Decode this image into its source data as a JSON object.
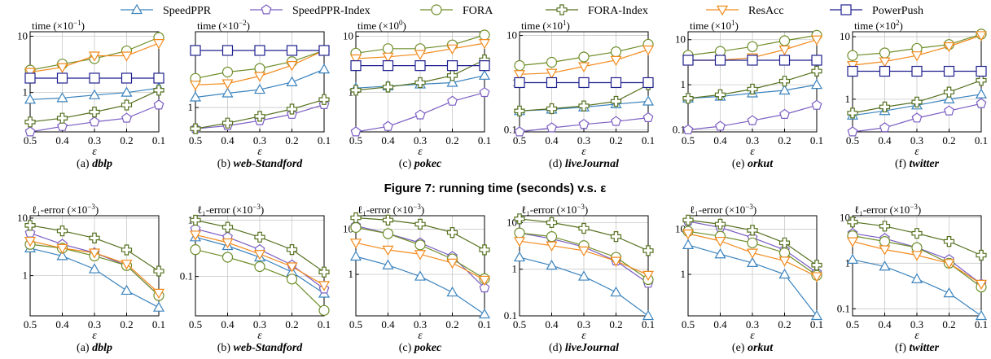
{
  "legend": [
    {
      "name": "SpeedPPR",
      "color": "#3b83bd",
      "marker": "triangle-up"
    },
    {
      "name": "SpeedPPR-Index",
      "color": "#7b5dc2",
      "marker": "pentagon"
    },
    {
      "name": "FORA",
      "color": "#6f8e2a",
      "marker": "circle"
    },
    {
      "name": "FORA-Index",
      "color": "#55701f",
      "marker": "plus"
    },
    {
      "name": "ResAcc",
      "color": "#f28a1c",
      "marker": "triangle-down"
    },
    {
      "name": "PowerPush",
      "color": "#1f1f8f",
      "marker": "square"
    }
  ],
  "figure_caption": "Figure 7: running time (seconds) v.s. ε",
  "x_label": "ε",
  "x_ticks": [
    "0.5",
    "0.4",
    "0.3",
    "0.2",
    "0.1"
  ],
  "chart_data": [
    {
      "type": "line",
      "row": 1,
      "caption_prefix": "(a)",
      "caption_name": "dblp",
      "title": "time (×10",
      "title_exp": "−1",
      "ytype": "log",
      "ylim": [
        0.2,
        12
      ],
      "yticks": [
        {
          "v": 1,
          "l": "1"
        },
        {
          "v": 10,
          "l": "10"
        }
      ],
      "x": [
        0.5,
        0.4,
        0.3,
        0.2,
        0.1
      ],
      "series": [
        {
          "name": "SpeedPPR",
          "values": [
            0.75,
            0.8,
            0.9,
            1.0,
            1.2
          ]
        },
        {
          "name": "SpeedPPR-Index",
          "values": [
            0.2,
            0.25,
            0.3,
            0.35,
            0.6
          ]
        },
        {
          "name": "FORA",
          "values": [
            2.5,
            3.2,
            4.0,
            5.5,
            9.5
          ]
        },
        {
          "name": "FORA-Index",
          "values": [
            0.3,
            0.35,
            0.45,
            0.6,
            1.1
          ]
        },
        {
          "name": "ResAcc",
          "values": [
            2.3,
            2.8,
            4.5,
            4.5,
            7.5
          ]
        },
        {
          "name": "PowerPush",
          "values": [
            1.8,
            1.8,
            1.8,
            1.8,
            1.8
          ]
        }
      ]
    },
    {
      "type": "line",
      "row": 1,
      "caption_prefix": "(b)",
      "caption_name": "web-Standford",
      "title": "time (×10",
      "title_exp": "−2",
      "ytype": "log",
      "ylim": [
        0.45,
        12
      ],
      "yticks": [
        {
          "v": 1,
          "l": "1"
        }
      ],
      "x": [
        0.5,
        0.4,
        0.3,
        0.2,
        0.1
      ],
      "series": [
        {
          "name": "SpeedPPR",
          "values": [
            1.4,
            1.6,
            1.8,
            2.3,
            3.5
          ]
        },
        {
          "name": "SpeedPPR-Index",
          "values": [
            0.5,
            0.55,
            0.65,
            0.8,
            1.1
          ]
        },
        {
          "name": "FORA",
          "values": [
            2.6,
            3.2,
            3.6,
            4.5,
            6.5
          ]
        },
        {
          "name": "FORA-Index",
          "values": [
            0.5,
            0.6,
            0.75,
            0.95,
            1.3
          ]
        },
        {
          "name": "ResAcc",
          "values": [
            2.1,
            2.2,
            2.8,
            4.0,
            6.5
          ]
        },
        {
          "name": "PowerPush",
          "values": [
            6.5,
            6.5,
            6.5,
            6.5,
            6.5
          ]
        }
      ]
    },
    {
      "type": "line",
      "row": 1,
      "caption_prefix": "(c)",
      "caption_name": "pokec",
      "title": "time (×10",
      "title_exp": "0",
      "ytype": "log",
      "ylim": [
        0.2,
        12
      ],
      "yticks": [
        {
          "v": 1,
          "l": "1"
        },
        {
          "v": 10,
          "l": "10"
        }
      ],
      "x": [
        0.5,
        0.4,
        0.3,
        0.2,
        0.1
      ],
      "series": [
        {
          "name": "SpeedPPR",
          "values": [
            1.2,
            1.3,
            1.4,
            1.5,
            2.0
          ]
        },
        {
          "name": "SpeedPPR-Index",
          "values": [
            0.2,
            0.25,
            0.4,
            0.7,
            1.0
          ]
        },
        {
          "name": "FORA",
          "values": [
            5.0,
            6.0,
            6.0,
            7.0,
            10.5
          ]
        },
        {
          "name": "FORA-Index",
          "values": [
            1.1,
            1.25,
            1.5,
            2.0,
            3.8
          ]
        },
        {
          "name": "ResAcc",
          "values": [
            4.0,
            4.3,
            4.8,
            6.0,
            7.5
          ]
        },
        {
          "name": "PowerPush",
          "values": [
            3.0,
            3.0,
            3.0,
            3.0,
            3.0
          ]
        }
      ]
    },
    {
      "type": "line",
      "row": 1,
      "caption_prefix": "(d)",
      "caption_name": "liveJournal",
      "title": "time (×10",
      "title_exp": "1",
      "ytype": "log",
      "ylim": [
        0.09,
        12
      ],
      "yticks": [
        {
          "v": 0.1,
          "l": "0.1"
        },
        {
          "v": 1,
          "l": "1"
        },
        {
          "v": 10,
          "l": "10"
        }
      ],
      "x": [
        0.5,
        0.4,
        0.3,
        0.2,
        0.1
      ],
      "series": [
        {
          "name": "SpeedPPR",
          "values": [
            0.25,
            0.27,
            0.3,
            0.35,
            0.4
          ]
        },
        {
          "name": "SpeedPPR-Index",
          "values": [
            0.09,
            0.11,
            0.13,
            0.15,
            0.18
          ]
        },
        {
          "name": "FORA",
          "values": [
            2.3,
            2.7,
            3.5,
            4.5,
            6.5
          ]
        },
        {
          "name": "FORA-Index",
          "values": [
            0.25,
            0.28,
            0.32,
            0.4,
            0.9
          ]
        },
        {
          "name": "ResAcc",
          "values": [
            1.5,
            1.6,
            2.2,
            3.0,
            5.0
          ]
        },
        {
          "name": "PowerPush",
          "values": [
            1.0,
            1.0,
            1.0,
            1.0,
            1.0
          ]
        }
      ]
    },
    {
      "type": "line",
      "row": 1,
      "caption_prefix": "(e)",
      "caption_name": "orkut",
      "title": "time (×10",
      "title_exp": "1",
      "ytype": "log",
      "ylim": [
        0.09,
        15
      ],
      "yticks": [
        {
          "v": 0.1,
          "l": "0.1"
        },
        {
          "v": 1,
          "l": "1"
        },
        {
          "v": 10,
          "l": "10"
        }
      ],
      "x": [
        0.5,
        0.4,
        0.3,
        0.2,
        0.1
      ],
      "series": [
        {
          "name": "SpeedPPR",
          "values": [
            0.5,
            0.55,
            0.65,
            0.75,
            1.0
          ]
        },
        {
          "name": "SpeedPPR-Index",
          "values": [
            0.1,
            0.12,
            0.16,
            0.22,
            0.35
          ]
        },
        {
          "name": "FORA",
          "values": [
            4.5,
            5.5,
            7.0,
            9.5,
            12.5
          ]
        },
        {
          "name": "FORA-Index",
          "values": [
            0.5,
            0.6,
            0.8,
            1.2,
            2.0
          ]
        },
        {
          "name": "ResAcc",
          "values": [
            3.5,
            3.5,
            4.0,
            6.0,
            10.0
          ]
        },
        {
          "name": "PowerPush",
          "values": [
            3.5,
            3.5,
            3.5,
            3.5,
            3.5
          ]
        }
      ]
    },
    {
      "type": "line",
      "row": 1,
      "caption_prefix": "(f)",
      "caption_name": "twitter",
      "title": "time (×10",
      "title_exp": "2",
      "ytype": "log",
      "ylim": [
        0.3,
        12
      ],
      "yticks": [
        {
          "v": 1,
          "l": "1"
        },
        {
          "v": 10,
          "l": "10"
        }
      ],
      "x": [
        0.5,
        0.4,
        0.3,
        0.2,
        0.1
      ],
      "series": [
        {
          "name": "SpeedPPR",
          "values": [
            0.55,
            0.65,
            0.8,
            1.0,
            1.2
          ]
        },
        {
          "name": "SpeedPPR-Index",
          "values": [
            0.3,
            0.35,
            0.5,
            0.65,
            0.85
          ]
        },
        {
          "name": "FORA",
          "values": [
            5.0,
            5.5,
            6.5,
            7.5,
            11.0
          ]
        },
        {
          "name": "FORA-Index",
          "values": [
            0.6,
            0.75,
            0.9,
            1.3,
            2.0
          ]
        },
        {
          "name": "ResAcc",
          "values": [
            3.5,
            4.0,
            5.0,
            7.0,
            10.5
          ]
        },
        {
          "name": "PowerPush",
          "values": [
            2.8,
            2.8,
            2.8,
            2.8,
            2.8
          ]
        }
      ]
    },
    {
      "type": "line",
      "row": 2,
      "caption_prefix": "(a)",
      "caption_name": "dblp",
      "title": "ℓ₁-error (×10",
      "title_exp": "−3",
      "ytype": "log",
      "ylim": [
        0.2,
        11
      ],
      "yticks": [
        {
          "v": 1,
          "l": "1"
        },
        {
          "v": 10,
          "l": "10"
        }
      ],
      "x": [
        0.5,
        0.4,
        0.3,
        0.2,
        0.1
      ],
      "series": [
        {
          "name": "SpeedPPR",
          "values": [
            3.0,
            2.2,
            1.3,
            0.55,
            0.28
          ]
        },
        {
          "name": "SpeedPPR-Index",
          "values": [
            5.5,
            3.5,
            2.5,
            1.5,
            0.45
          ]
        },
        {
          "name": "FORA",
          "values": [
            3.5,
            3.0,
            2.2,
            1.5,
            0.45
          ]
        },
        {
          "name": "FORA-Index",
          "values": [
            7.5,
            6.0,
            4.5,
            2.8,
            1.2
          ]
        },
        {
          "name": "ResAcc",
          "values": [
            4.0,
            3.0,
            2.5,
            1.6,
            0.5
          ]
        }
      ]
    },
    {
      "type": "line",
      "row": 2,
      "caption_prefix": "(b)",
      "caption_name": "web-Standford",
      "title": "ℓ₁-error (×10",
      "title_exp": "−3",
      "ytype": "log",
      "ylim": [
        0.02,
        1.2
      ],
      "yticks": [
        {
          "v": 0.1,
          "l": "0.1"
        },
        {
          "v": 1,
          "l": "1"
        }
      ],
      "x": [
        0.5,
        0.4,
        0.3,
        0.2,
        0.1
      ],
      "series": [
        {
          "name": "SpeedPPR",
          "values": [
            0.5,
            0.35,
            0.22,
            0.12,
            0.05
          ]
        },
        {
          "name": "SpeedPPR-Index",
          "values": [
            0.7,
            0.5,
            0.3,
            0.16,
            0.06
          ]
        },
        {
          "name": "FORA",
          "values": [
            0.3,
            0.22,
            0.15,
            0.09,
            0.025
          ]
        },
        {
          "name": "FORA-Index",
          "values": [
            1.0,
            0.75,
            0.5,
            0.3,
            0.12
          ]
        },
        {
          "name": "ResAcc",
          "values": [
            0.55,
            0.4,
            0.25,
            0.15,
            0.07
          ]
        }
      ]
    },
    {
      "type": "line",
      "row": 2,
      "caption_prefix": "(c)",
      "caption_name": "pokec",
      "title": "ℓ₁-error (×10",
      "title_exp": "−3",
      "ytype": "log",
      "ylim": [
        0.12,
        20
      ],
      "yticks": [
        {
          "v": 1,
          "l": "1"
        },
        {
          "v": 10,
          "l": "10"
        }
      ],
      "x": [
        0.5,
        0.4,
        0.3,
        0.2,
        0.1
      ],
      "series": [
        {
          "name": "SpeedPPR",
          "values": [
            2.5,
            1.6,
            0.9,
            0.4,
            0.13
          ]
        },
        {
          "name": "SpeedPPR-Index",
          "values": [
            12.0,
            8.0,
            5.0,
            2.5,
            0.5
          ]
        },
        {
          "name": "FORA",
          "values": [
            11.0,
            8.0,
            4.5,
            2.2,
            0.8
          ]
        },
        {
          "name": "FORA-Index",
          "values": [
            18.0,
            16.0,
            13.0,
            8.5,
            3.5
          ]
        },
        {
          "name": "ResAcc",
          "values": [
            5.0,
            3.5,
            2.8,
            1.8,
            0.75
          ]
        }
      ]
    },
    {
      "type": "line",
      "row": 2,
      "caption_prefix": "(d)",
      "caption_name": "liveJournal",
      "title": "ℓ₁-error (×10",
      "title_exp": "−3",
      "ytype": "log",
      "ylim": [
        0.1,
        14
      ],
      "yticks": [
        {
          "v": 0.1,
          "l": "0.1"
        },
        {
          "v": 1,
          "l": "1"
        },
        {
          "v": 10,
          "l": "10"
        }
      ],
      "x": [
        0.5,
        0.4,
        0.3,
        0.2,
        0.1
      ],
      "series": [
        {
          "name": "SpeedPPR",
          "values": [
            1.8,
            1.2,
            0.7,
            0.32,
            0.1
          ]
        },
        {
          "name": "SpeedPPR-Index",
          "values": [
            6.0,
            4.5,
            3.0,
            1.5,
            0.5
          ]
        },
        {
          "name": "FORA",
          "values": [
            6.0,
            5.0,
            3.2,
            1.8,
            0.6
          ]
        },
        {
          "name": "FORA-Index",
          "values": [
            12.0,
            10.0,
            7.5,
            5.0,
            2.5
          ]
        },
        {
          "name": "ResAcc",
          "values": [
            4.0,
            3.2,
            2.5,
            1.5,
            0.75
          ]
        }
      ]
    },
    {
      "type": "line",
      "row": 2,
      "caption_prefix": "(e)",
      "caption_name": "orkut",
      "title": "ℓ₁-error (×10",
      "title_exp": "−3",
      "ytype": "log",
      "ylim": [
        0.12,
        20
      ],
      "yticks": [
        {
          "v": 1,
          "l": "1"
        },
        {
          "v": 10,
          "l": "10"
        }
      ],
      "x": [
        0.5,
        0.4,
        0.3,
        0.2,
        0.1
      ],
      "series": [
        {
          "name": "SpeedPPR",
          "values": [
            4.5,
            2.8,
            1.8,
            1.0,
            0.12
          ]
        },
        {
          "name": "SpeedPPR-Index",
          "values": [
            15.0,
            11.0,
            6.5,
            3.5,
            1.1
          ]
        },
        {
          "name": "FORA",
          "values": [
            9.0,
            7.0,
            5.0,
            3.0,
            0.95
          ]
        },
        {
          "name": "FORA-Index",
          "values": [
            16.0,
            13.0,
            9.5,
            5.0,
            1.6
          ]
        },
        {
          "name": "ResAcc",
          "values": [
            8.0,
            5.5,
            3.0,
            2.0,
            0.9
          ]
        }
      ]
    },
    {
      "type": "line",
      "row": 2,
      "caption_prefix": "(f)",
      "caption_name": "twitter",
      "title": "ℓ₁-error (×10",
      "title_exp": "−3",
      "ytype": "log",
      "ylim": [
        0.07,
        11
      ],
      "yticks": [
        {
          "v": 0.1,
          "l": "0.1"
        },
        {
          "v": 1,
          "l": "1"
        },
        {
          "v": 10,
          "l": "10"
        }
      ],
      "x": [
        0.5,
        0.4,
        0.3,
        0.2,
        0.1
      ],
      "series": [
        {
          "name": "SpeedPPR",
          "values": [
            1.2,
            0.85,
            0.45,
            0.22,
            0.07
          ]
        },
        {
          "name": "SpeedPPR-Index",
          "values": [
            4.5,
            3.5,
            2.2,
            1.2,
            0.35
          ]
        },
        {
          "name": "FORA",
          "values": [
            4.0,
            3.0,
            2.2,
            1.0,
            0.3
          ]
        },
        {
          "name": "FORA-Index",
          "values": [
            8.0,
            6.5,
            4.5,
            3.0,
            1.5
          ]
        },
        {
          "name": "ResAcc",
          "values": [
            3.0,
            2.0,
            1.5,
            1.0,
            0.35
          ]
        }
      ]
    }
  ]
}
